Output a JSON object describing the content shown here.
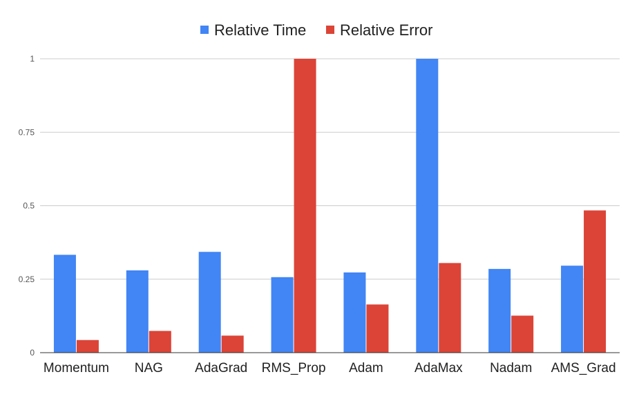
{
  "chart_data": {
    "type": "bar",
    "title": "",
    "xlabel": "",
    "ylabel": "",
    "categories": [
      "Momentum",
      "NAG",
      "AdaGrad",
      "RMS_Prop",
      "Adam",
      "AdaMax",
      "Nadam",
      "AMS_Grad"
    ],
    "series": [
      {
        "name": "Relative Time",
        "color": "#4285f4",
        "values": [
          0.333,
          0.28,
          0.343,
          0.257,
          0.273,
          1.0,
          0.285,
          0.296
        ]
      },
      {
        "name": "Relative Error",
        "color": "#db4437",
        "values": [
          0.043,
          0.074,
          0.058,
          1.0,
          0.164,
          0.305,
          0.126,
          0.484
        ]
      }
    ],
    "ylim": [
      0,
      1
    ],
    "yticks": [
      {
        "value": 0,
        "label": "0"
      },
      {
        "value": 0.25,
        "label": "0.25"
      },
      {
        "value": 0.5,
        "label": "0.5"
      },
      {
        "value": 0.75,
        "label": "0.75"
      },
      {
        "value": 1,
        "label": "1"
      }
    ],
    "grid": true,
    "legend_position": "top-center"
  }
}
